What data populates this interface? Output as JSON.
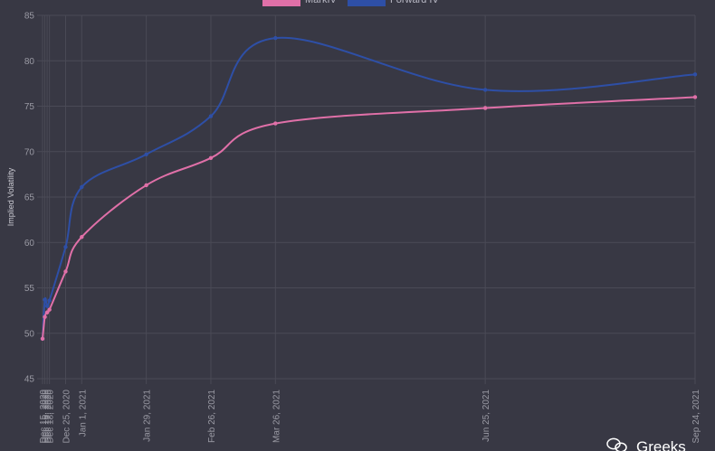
{
  "chart_data": {
    "type": "line",
    "ylabel": "Implied Volatility",
    "ylim": [
      45,
      85
    ],
    "yticks": [
      45,
      50,
      55,
      60,
      65,
      70,
      75,
      80,
      85
    ],
    "grid": true,
    "legend_position": "top-center",
    "x_tick_labels": [
      "Dec 15, 2020",
      "Dec 16, 2020",
      "Dec 17, 2020",
      "Dec 18, 2020",
      "Dec 25, 2020",
      "Jan 1, 2021",
      "Jan 29, 2021",
      "Feb 26, 2021",
      "Mar 26, 2021",
      "Jun 25, 2021",
      "Sep 24, 2021"
    ],
    "x_dates": [
      "2020-12-15",
      "2020-12-16",
      "2020-12-17",
      "2020-12-18",
      "2020-12-25",
      "2021-01-01",
      "2021-01-29",
      "2021-02-26",
      "2021-03-26",
      "2021-06-25",
      "2021-09-24"
    ],
    "series": [
      {
        "name": "MarkIV",
        "color": "#e070a8",
        "values": [
          49.4,
          51.8,
          52.3,
          52.6,
          56.8,
          60.6,
          66.3,
          69.3,
          73.1,
          74.8,
          76.0
        ],
        "show_points": true
      },
      {
        "name": "Forward IV",
        "color": "#2e4fa6",
        "values": [
          49.4,
          53.7,
          53.0,
          53.6,
          59.5,
          66.1,
          69.7,
          73.9,
          82.5,
          76.8,
          78.5
        ],
        "show_points": true
      }
    ]
  },
  "watermark": {
    "text": "Greeks",
    "icon": "wechat-icon"
  }
}
